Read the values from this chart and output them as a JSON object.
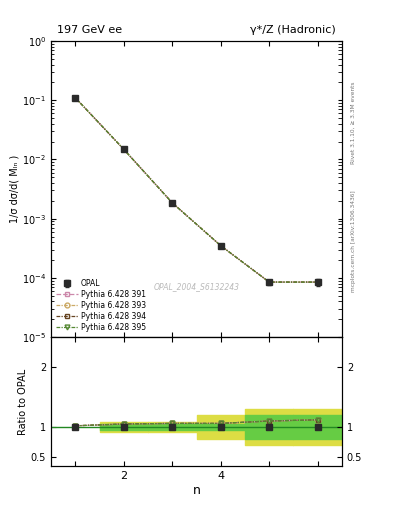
{
  "title_left": "197 GeV ee",
  "title_right": "γ*/Z (Hadronic)",
  "ylabel_main": "1/σ dσ/d( Mₗₙ )",
  "ylabel_ratio": "Ratio to OPAL",
  "xlabel": "n",
  "watermark": "OPAL_2004_S6132243",
  "right_label_top": "Rivet 3.1.10, ≥ 3.3M events",
  "right_label_bot": "mcplots.cern.ch [arXiv:1306.3436]",
  "x_data": [
    1,
    2,
    3,
    4,
    5,
    6
  ],
  "y_opal": [
    0.11,
    0.0148,
    0.00185,
    0.00035,
    8.5e-05,
    8.5e-05
  ],
  "y_opal_err": [
    0.006,
    0.0008,
    0.00012,
    2.5e-05,
    8e-06,
    1.2e-05
  ],
  "y_pythia391": [
    0.11,
    0.0148,
    0.00185,
    0.00035,
    8.5e-05,
    8.5e-05
  ],
  "y_pythia393": [
    0.11,
    0.0148,
    0.00185,
    0.00035,
    8.5e-05,
    8.5e-05
  ],
  "y_pythia394": [
    0.11,
    0.0148,
    0.00185,
    0.00035,
    8.5e-05,
    8.5e-05
  ],
  "y_pythia395": [
    0.11,
    0.0148,
    0.00185,
    0.00035,
    8.5e-05,
    8.5e-05
  ],
  "ratio_pythia": [
    1.02,
    1.05,
    1.06,
    1.06,
    1.1,
    1.12
  ],
  "band_x_edges": [
    1.5,
    2.5,
    3.5,
    4.5,
    5.5,
    6.5
  ],
  "green_lo": [
    0.955,
    0.955,
    0.955,
    0.8,
    0.8
  ],
  "green_hi": [
    1.045,
    1.045,
    1.045,
    1.2,
    1.2
  ],
  "yellow_lo": [
    0.91,
    0.91,
    0.8,
    0.7,
    0.7
  ],
  "yellow_hi": [
    1.09,
    1.09,
    1.2,
    1.3,
    1.3
  ],
  "xlim": [
    0.5,
    6.5
  ],
  "ylim_main": [
    1e-05,
    1.0
  ],
  "ylim_ratio": [
    0.35,
    2.5
  ],
  "ratio_yticks": [
    0.5,
    1.0,
    2.0
  ],
  "color_opal": "#2a2a2a",
  "color_391": "#cc88aa",
  "color_393": "#ccaa66",
  "color_394": "#664422",
  "color_395": "#558833",
  "color_green_band": "#66cc44",
  "color_yellow_band": "#dddd44",
  "color_ref_line": "#228822",
  "xticks": [
    1,
    2,
    3,
    4,
    5,
    6
  ],
  "xtick_labels": [
    "",
    "2",
    "",
    "4",
    "",
    ""
  ]
}
